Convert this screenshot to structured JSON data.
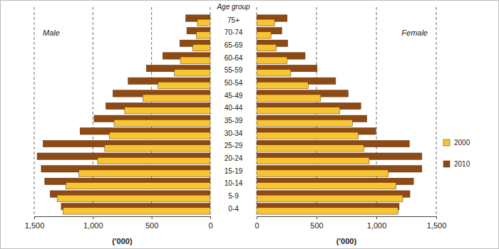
{
  "chart_data": [
    {
      "type": "bar",
      "orientation": "horizontal",
      "title": "Male",
      "y_label": "Age group",
      "x_label": "('000)",
      "categories": [
        "75+",
        "70-74",
        "65-69",
        "60-64",
        "55-59",
        "50-54",
        "45-49",
        "40-44",
        "35-39",
        "30-34",
        "25-29",
        "20-24",
        "15-19",
        "10-14",
        "5-9",
        "0-4"
      ],
      "series": [
        {
          "color": "#f7c531",
          "values": [
            110,
            120,
            150,
            255,
            305,
            445,
            575,
            730,
            820,
            860,
            900,
            960,
            1120,
            1230,
            1305,
            1255
          ]
        },
        {
          "color": "#8e4a14",
          "values": [
            210,
            200,
            260,
            405,
            545,
            700,
            830,
            890,
            990,
            1110,
            1425,
            1475,
            1440,
            1410,
            1365,
            1270
          ]
        }
      ],
      "xlim": [
        1500,
        0
      ],
      "xticks": [
        {
          "value": 1500,
          "label": "1,500"
        },
        {
          "value": 1000,
          "label": "1,000"
        },
        500,
        0
      ],
      "grid": true
    },
    {
      "type": "bar",
      "orientation": "horizontal",
      "title": "Female",
      "x_label": "('000)",
      "categories": [
        "75+",
        "70-74",
        "65-69",
        "60-64",
        "55-59",
        "50-54",
        "45-49",
        "40-44",
        "35-39",
        "30-34",
        "25-29",
        "20-24",
        "15-19",
        "10-14",
        "5-9",
        "0-4"
      ],
      "series": [
        {
          "name": "2000",
          "color": "#f7c531",
          "values": [
            150,
            120,
            165,
            255,
            285,
            430,
            535,
            695,
            800,
            850,
            895,
            940,
            1100,
            1165,
            1220,
            1180
          ]
        },
        {
          "name": "2010",
          "color": "#8e4a14",
          "values": [
            255,
            210,
            260,
            405,
            505,
            660,
            765,
            870,
            920,
            995,
            1275,
            1380,
            1380,
            1310,
            1280,
            1190
          ]
        }
      ],
      "xlim": [
        0,
        1500
      ],
      "xticks": [
        0,
        500,
        {
          "value": 1000,
          "label": "1,000"
        },
        {
          "value": 1500,
          "label": "1,500"
        }
      ],
      "grid": true,
      "legend": "right"
    }
  ]
}
